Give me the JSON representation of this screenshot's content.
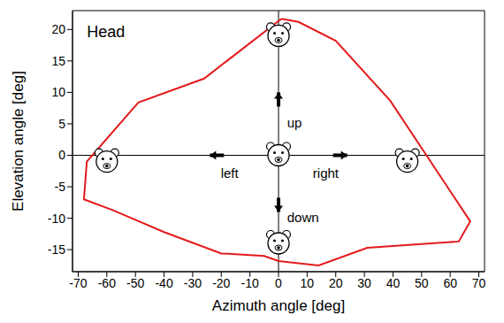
{
  "chart_data": {
    "type": "line",
    "title": "Head",
    "x_label": "Azimuth angle [deg]",
    "y_label": "Elevation angle [deg]",
    "x": [
      1,
      7,
      20,
      39,
      67,
      63,
      31,
      14,
      0,
      -5,
      -20,
      -40,
      -58,
      -68,
      -67,
      -49,
      -26,
      1
    ],
    "values": [
      21.7,
      21.2,
      18.2,
      8.7,
      -10.5,
      -13.7,
      -14.7,
      -17.5,
      -16.8,
      -16,
      -15.6,
      -12.2,
      -8.7,
      -7,
      -1,
      8.4,
      12.2,
      21.7
    ],
    "color": "#e31a1c",
    "xlim": [
      -72,
      72
    ],
    "ylim": [
      -18.5,
      23
    ],
    "xticks": [
      -70,
      -60,
      -50,
      -40,
      -30,
      -20,
      -10,
      0,
      10,
      20,
      30,
      40,
      50,
      60,
      70
    ],
    "yticks": [
      -15,
      -10,
      -5,
      0,
      5,
      10,
      15,
      20
    ],
    "reference_lines": {
      "x": 0,
      "y": 0
    },
    "annotations": [
      {
        "text": "up",
        "x": 3,
        "y": 5
      },
      {
        "text": "down",
        "x": 3,
        "y": -10
      },
      {
        "text": "left",
        "x": -14,
        "y": -3
      },
      {
        "text": "right",
        "x": 12,
        "y": -3
      }
    ]
  }
}
